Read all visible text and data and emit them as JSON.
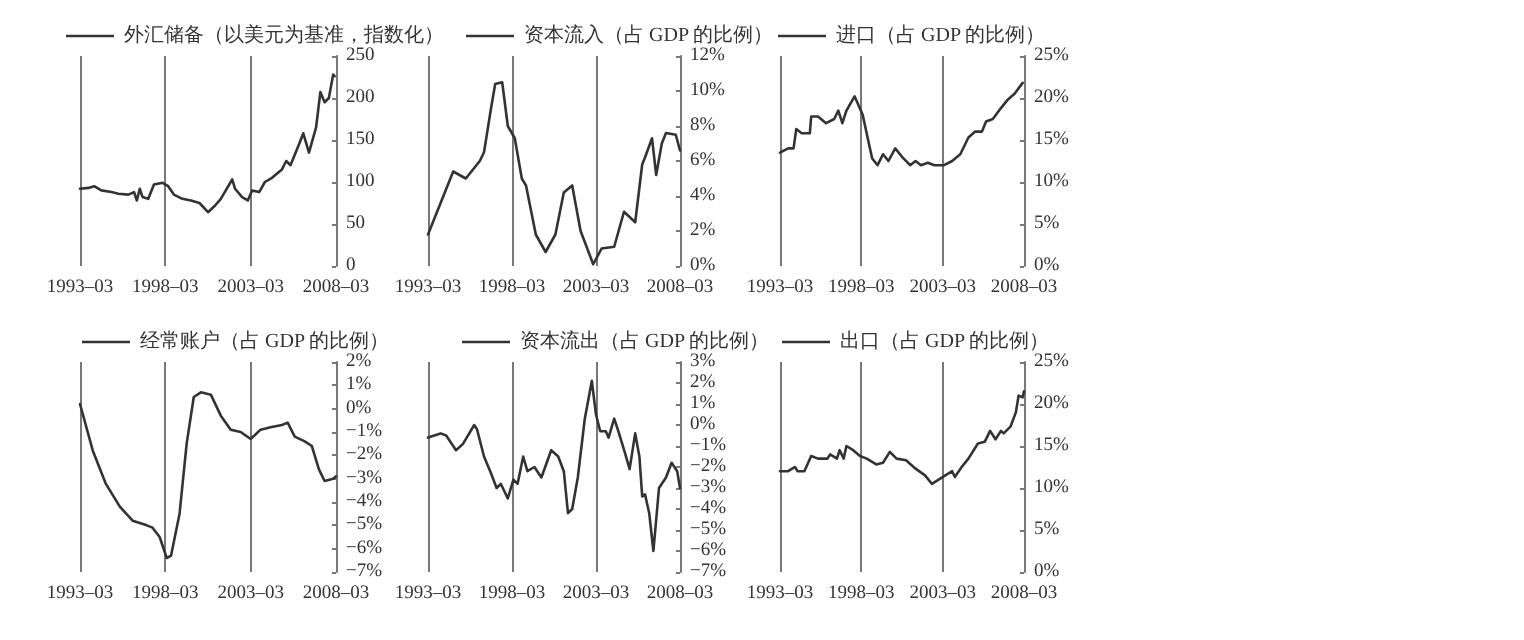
{
  "chart_data": [
    {
      "type": "line",
      "series": [
        {
          "name": "外汇储备（以美元为基准，指数化）",
          "color": "#333333",
          "values": [
            92,
            93,
            95,
            90,
            88,
            86,
            85,
            88,
            78,
            92,
            82,
            80,
            97,
            99,
            95,
            85,
            80,
            78,
            75,
            64,
            72,
            80,
            103,
            92,
            82,
            78,
            90,
            88,
            100,
            105,
            115,
            125,
            120,
            145,
            158,
            135,
            165,
            207,
            195,
            200,
            228,
            226
          ]
        }
      ],
      "x": [
        "1993-03",
        "1993-09",
        "1994-01",
        "1994-06",
        "1995-01",
        "1995-06",
        "1996-01",
        "1996-05",
        "1996-07",
        "1996-09",
        "1996-11",
        "1997-03",
        "1997-07",
        "1998-01",
        "1998-05",
        "1998-09",
        "1999-03",
        "1999-09",
        "2000-03",
        "2000-09",
        "2001-02",
        "2001-06",
        "2002-02",
        "2002-04",
        "2002-09",
        "2003-01",
        "2003-04",
        "2003-09",
        "2004-01",
        "2004-06",
        "2005-01",
        "2005-04",
        "2005-07",
        "2006-01",
        "2006-04",
        "2006-08",
        "2007-01",
        "2007-04",
        "2007-07",
        "2007-10",
        "2008-01",
        "2008-02"
      ],
      "xlim": [
        "1993-03",
        "2008-03"
      ],
      "xticks": [
        {
          "value": "1993-03",
          "label": "1993–03"
        },
        {
          "value": "1998-03",
          "label": "1998–03"
        },
        {
          "value": "2003-03",
          "label": "2003–03"
        },
        {
          "value": "2008-03",
          "label": "2008–03"
        }
      ],
      "ylim": [
        0,
        250
      ],
      "yticks": [
        0,
        50,
        100,
        150,
        200,
        250
      ],
      "grid": "x",
      "legend": "top",
      "marker": "none"
    },
    {
      "type": "line",
      "series": [
        {
          "name": "资本流入（占 GDP 的比例）",
          "color": "#333333",
          "values": [
            1.8,
            5.4,
            5.0,
            6.0,
            6.5,
            9.0,
            10.4,
            10.5,
            8.0,
            7.3,
            5.0,
            4.6,
            1.8,
            0.8,
            1.8,
            4.2,
            4.6,
            2.0,
            0.1,
            1.0,
            1.1,
            3.1,
            2.5,
            5.8,
            6.2,
            7.3,
            5.2,
            7.0,
            7.6,
            7.5,
            6.6
          ]
        }
      ],
      "x": [
        "1993-03",
        "1994-09",
        "1995-06",
        "1996-04",
        "1996-07",
        "1996-12",
        "1997-03",
        "1997-08",
        "1997-12",
        "1998-05",
        "1998-10",
        "1999-01",
        "1999-08",
        "2000-03",
        "2000-10",
        "2001-04",
        "2001-10",
        "2002-04",
        "2003-01",
        "2003-07",
        "2004-04",
        "2004-11",
        "2005-07",
        "2005-12",
        "2006-02",
        "2006-07",
        "2006-10",
        "2007-02",
        "2007-05",
        "2007-12",
        "2008-03"
      ],
      "xlim": [
        "1993-03",
        "2008-03"
      ],
      "xticks": [
        {
          "value": "1993-03",
          "label": "1993–03"
        },
        {
          "value": "1998-03",
          "label": "1998–03"
        },
        {
          "value": "2003-03",
          "label": "2003–03"
        },
        {
          "value": "2008-03",
          "label": "2008–03"
        }
      ],
      "ylim": [
        0,
        12
      ],
      "yticks": [
        {
          "value": 0,
          "label": "0%"
        },
        {
          "value": 2,
          "label": "2%"
        },
        {
          "value": 4,
          "label": "4%"
        },
        {
          "value": 6,
          "label": "6%"
        },
        {
          "value": 8,
          "label": "8%"
        },
        {
          "value": 10,
          "label": "10%"
        },
        {
          "value": 12,
          "label": "12%"
        }
      ],
      "grid": "x",
      "legend": "top",
      "marker": "none"
    },
    {
      "type": "line",
      "series": [
        {
          "name": "进口（占 GDP 的比例）",
          "color": "#333333",
          "values": [
            13.5,
            14,
            14,
            16.3,
            15.8,
            15.8,
            17.8,
            17.8,
            17,
            17.5,
            18.5,
            17,
            18.5,
            20.2,
            18,
            15,
            12.8,
            12,
            13.3,
            12.5,
            14,
            13,
            12,
            12.5,
            12,
            12.3,
            12,
            12,
            12.5,
            13.3,
            15.3,
            16,
            16,
            17.2,
            17.5,
            18.8,
            19.8,
            20.5,
            21.8
          ]
        }
      ],
      "x": [
        "1993-03",
        "1993-09",
        "1994-01",
        "1994-03",
        "1994-07",
        "1995-01",
        "1995-02",
        "1995-07",
        "1996-01",
        "1996-07",
        "1996-10",
        "1997-01",
        "1997-04",
        "1997-10",
        "1998-04",
        "1998-08",
        "1998-11",
        "1999-03",
        "1999-07",
        "1999-11",
        "2000-04",
        "2000-09",
        "2001-03",
        "2001-07",
        "2001-11",
        "2002-04",
        "2002-09",
        "2003-04",
        "2003-10",
        "2004-04",
        "2004-10",
        "2005-03",
        "2005-08",
        "2005-11",
        "2006-04",
        "2006-10",
        "2007-03",
        "2007-08",
        "2008-02"
      ],
      "xlim": [
        "1993-03",
        "2008-03"
      ],
      "xticks": [
        {
          "value": "1993-03",
          "label": "1993–03"
        },
        {
          "value": "1998-03",
          "label": "1998–03"
        },
        {
          "value": "2003-03",
          "label": "2003–03"
        },
        {
          "value": "2008-03",
          "label": "2008–03"
        }
      ],
      "ylim": [
        0,
        25
      ],
      "yticks": [
        {
          "value": 0,
          "label": "0%"
        },
        {
          "value": 5,
          "label": "5%"
        },
        {
          "value": 10,
          "label": "10%"
        },
        {
          "value": 15,
          "label": "15%"
        },
        {
          "value": 20,
          "label": "20%"
        },
        {
          "value": 25,
          "label": "25%"
        }
      ],
      "grid": "x",
      "legend": "top",
      "marker": "none"
    },
    {
      "type": "line",
      "series": [
        {
          "name": "经常账户（占 GDP 的比例）",
          "color": "#333333",
          "values": [
            0.2,
            -1.8,
            -3.2,
            -4.2,
            -4.8,
            -5.0,
            -5.1,
            -5.5,
            -6.4,
            -6.3,
            -4.5,
            -1.5,
            0.5,
            0.7,
            0.6,
            -0.3,
            -0.9,
            -1.0,
            -1.3,
            -0.9,
            -0.8,
            -0.7,
            -0.6,
            -1.2,
            -1.4,
            -1.6,
            -2.6,
            -3.1,
            -3.0,
            -2.9
          ]
        }
      ],
      "x": [
        "1993-03",
        "1993-12",
        "1994-09",
        "1995-07",
        "1996-04",
        "1997-02",
        "1997-06",
        "1997-11",
        "1998-04",
        "1998-07",
        "1999-01",
        "1999-06",
        "1999-11",
        "2000-04",
        "2000-11",
        "2001-06",
        "2002-01",
        "2002-08",
        "2003-03",
        "2003-10",
        "2004-05",
        "2005-01",
        "2005-05",
        "2005-10",
        "2006-05",
        "2006-10",
        "2007-03",
        "2007-07",
        "2008-01",
        "2008-03"
      ],
      "xlim": [
        "1993-03",
        "2008-03"
      ],
      "xticks": [
        {
          "value": "1993-03",
          "label": "1993–03"
        },
        {
          "value": "1998-03",
          "label": "1998–03"
        },
        {
          "value": "2003-03",
          "label": "2003–03"
        },
        {
          "value": "2008-03",
          "label": "2008–03"
        }
      ],
      "ylim": [
        -7,
        2
      ],
      "yticks": [
        {
          "value": -7,
          "label": "−7%"
        },
        {
          "value": -6,
          "label": "−6%"
        },
        {
          "value": -5,
          "label": "−5%"
        },
        {
          "value": -4,
          "label": "−4%"
        },
        {
          "value": -3,
          "label": "−3%"
        },
        {
          "value": -2,
          "label": "−2%"
        },
        {
          "value": -1,
          "label": "−1%"
        },
        {
          "value": 0,
          "label": "0%"
        },
        {
          "value": 1,
          "label": "1%"
        },
        {
          "value": 2,
          "label": "2%"
        }
      ],
      "grid": "x",
      "legend": "top",
      "marker": "none"
    },
    {
      "type": "line",
      "series": [
        {
          "name": "资本流出（占 GDP 的比例）",
          "color": "#333333",
          "values": [
            -0.6,
            -0.4,
            -0.5,
            -1.2,
            -0.9,
            0,
            -0.2,
            -1.5,
            -2.3,
            -3.0,
            -2.8,
            -3.5,
            -2.6,
            -2.8,
            -1.5,
            -2.2,
            -2.0,
            -2.5,
            -1.2,
            -1.5,
            -2.2,
            -4.2,
            -4.0,
            -2.5,
            0.3,
            2.1,
            0.5,
            -0.3,
            -0.3,
            -0.6,
            0.3,
            -0.3,
            -1.4,
            -2.1,
            -0.4,
            -1.5,
            -3.4,
            -3.3,
            -4.2,
            -6.0,
            -3.0,
            -2.5,
            -1.8,
            -2.2,
            -3.0
          ]
        }
      ],
      "x": [
        "1993-03",
        "1993-12",
        "1994-04",
        "1994-11",
        "1995-04",
        "1995-12",
        "1996-02",
        "1996-07",
        "1996-12",
        "1997-04",
        "1997-07",
        "1997-12",
        "1998-04",
        "1998-07",
        "1998-11",
        "1999-02",
        "1999-07",
        "1999-12",
        "2000-07",
        "2000-12",
        "2001-04",
        "2001-07",
        "2001-10",
        "2002-02",
        "2002-07",
        "2002-12",
        "2003-03",
        "2003-06",
        "2003-10",
        "2003-12",
        "2004-04",
        "2004-07",
        "2004-12",
        "2005-03",
        "2005-07",
        "2005-10",
        "2005-12",
        "2006-02",
        "2006-05",
        "2006-08",
        "2006-12",
        "2007-05",
        "2007-09",
        "2008-01",
        "2008-03"
      ],
      "xlim": [
        "1993-03",
        "2008-03"
      ],
      "xticks": [
        {
          "value": "1993-03",
          "label": "1993–03"
        },
        {
          "value": "1998-03",
          "label": "1998–03"
        },
        {
          "value": "2003-03",
          "label": "2003–03"
        },
        {
          "value": "2008-03",
          "label": "2008–03"
        }
      ],
      "ylim": [
        -7,
        3
      ],
      "yticks": [
        {
          "value": -7,
          "label": "−7%"
        },
        {
          "value": -6,
          "label": "−6%"
        },
        {
          "value": -5,
          "label": "−5%"
        },
        {
          "value": -4,
          "label": "−4%"
        },
        {
          "value": -3,
          "label": "−3%"
        },
        {
          "value": -2,
          "label": "−2%"
        },
        {
          "value": -1,
          "label": "−1%"
        },
        {
          "value": 0,
          "label": "0%"
        },
        {
          "value": 1,
          "label": "1%"
        },
        {
          "value": 2,
          "label": "2%"
        },
        {
          "value": 3,
          "label": "3%"
        }
      ],
      "grid": "x",
      "legend": "top",
      "marker": "none"
    },
    {
      "type": "line",
      "series": [
        {
          "name": "出口（占 GDP 的比例）",
          "color": "#333333",
          "values": [
            12,
            12,
            12.3,
            12.5,
            12,
            12,
            13.8,
            13.5,
            13.5,
            14,
            13.5,
            14.5,
            13.5,
            15,
            14.5,
            13.8,
            13.5,
            12.8,
            13,
            14.3,
            13.5,
            13.3,
            12.3,
            11.5,
            10.5,
            11,
            11.5,
            12,
            11.3,
            12.5,
            13.5,
            15.3,
            15.5,
            16.8,
            15.8,
            16.8,
            16.5,
            17.3,
            19,
            21,
            20.8,
            21.5
          ]
        }
      ],
      "x": [
        "1993-03",
        "1993-09",
        "1993-12",
        "1994-02",
        "1994-04",
        "1994-09",
        "1995-02",
        "1995-07",
        "1996-02",
        "1996-04",
        "1996-09",
        "1996-11",
        "1997-02",
        "1997-04",
        "1997-09",
        "1998-02",
        "1998-07",
        "1999-02",
        "1999-07",
        "1999-12",
        "2000-05",
        "2000-12",
        "2001-07",
        "2002-02",
        "2002-07",
        "2002-12",
        "2003-05",
        "2003-10",
        "2003-12",
        "2004-05",
        "2004-10",
        "2005-05",
        "2005-10",
        "2006-02",
        "2006-06",
        "2006-10",
        "2006-12",
        "2007-05",
        "2007-09",
        "2007-11",
        "2008-02",
        "2008-03"
      ],
      "xlim": [
        "1993-03",
        "2008-03"
      ],
      "xticks": [
        {
          "value": "1993-03",
          "label": "1993–03"
        },
        {
          "value": "1998-03",
          "label": "1998–03"
        },
        {
          "value": "2003-03",
          "label": "2003–03"
        },
        {
          "value": "2008-03",
          "label": "2008–03"
        }
      ],
      "ylim": [
        0,
        25
      ],
      "yticks": [
        {
          "value": 0,
          "label": "0%"
        },
        {
          "value": 5,
          "label": "5%"
        },
        {
          "value": 10,
          "label": "10%"
        },
        {
          "value": 15,
          "label": "15%"
        },
        {
          "value": 20,
          "label": "20%"
        },
        {
          "value": 25,
          "label": "25%"
        }
      ],
      "grid": "x",
      "legend": "top",
      "marker": "none"
    }
  ]
}
